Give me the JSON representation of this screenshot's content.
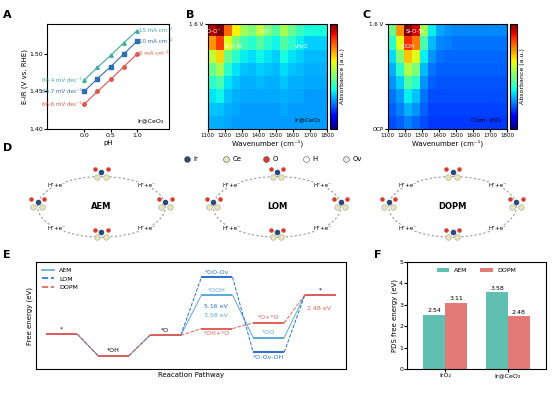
{
  "chart_data": [
    {
      "panel": "A",
      "type": "line",
      "xlabel": "pH",
      "ylabel": "E-iR (V vs. RHE)",
      "x": [
        0,
        0.25,
        0.5,
        0.75,
        1.0
      ],
      "xlim": [
        -0.7,
        1.6
      ],
      "ylim": [
        1.4,
        1.54
      ],
      "xticks": [
        {
          "value": 0,
          "label": "0.0"
        },
        {
          "value": 0.5,
          "label": "0.5"
        },
        {
          "value": 1.0,
          "label": "1.0"
        }
      ],
      "yticks": [
        {
          "value": 1.4,
          "label": "1.40"
        },
        {
          "value": 1.45,
          "label": "1.45"
        },
        {
          "value": 1.5,
          "label": "1.50"
        }
      ],
      "annotation": "Ir@CeO₂",
      "series": [
        {
          "name": "15 mA cm⁻²",
          "slope_label": "66.4 mV dec⁻¹",
          "color": "#3fae9d",
          "marker": "triangle",
          "values": [
            1.465,
            1.482,
            1.498,
            1.515,
            1.531
          ]
        },
        {
          "name": "10 mA cm⁻²",
          "slope_label": "66.7 mV dec⁻¹",
          "color": "#2f6fb0",
          "marker": "square",
          "values": [
            1.45,
            1.467,
            1.483,
            1.5,
            1.517
          ]
        },
        {
          "name": "5 mA cm⁻²",
          "slope_label": "66.6 mV dec⁻¹",
          "color": "#e0554d",
          "marker": "circle",
          "values": [
            1.433,
            1.45,
            1.466,
            1.483,
            1.5
          ]
        }
      ]
    },
    {
      "panel": "B",
      "type": "heatmap",
      "xlabel": "Wavenumber (cm⁻¹)",
      "xlim": [
        1100,
        1800
      ],
      "ylim": [
        0,
        1
      ],
      "xticks": [
        1100,
        1200,
        1300,
        1400,
        1500,
        1600,
        1700,
        1800
      ],
      "yticks": [
        {
          "value": 1,
          "label": "1.6 V"
        }
      ],
      "sample": "Ir@CeO₂",
      "annotations": [
        {
          "text": "*O-O⁻",
          "x": 1130
        },
        {
          "text": "Si-O-Si",
          "x": 1250
        },
        {
          "text": "O-O⁻",
          "x": 1440
        },
        {
          "text": "νH₂O",
          "x": 1650
        }
      ],
      "colorbar": {
        "label": "Absorbance (a.u.)",
        "range": [
          0,
          1
        ]
      },
      "cells": [
        [
          0.3,
          0.3,
          0.29,
          0.28,
          0.28,
          0.28,
          0.28,
          0.28,
          0.28,
          0.28,
          0.28,
          0.28,
          0.28,
          0.28,
          0.28
        ],
        [
          0.32,
          0.32,
          0.3,
          0.29,
          0.28,
          0.28,
          0.28,
          0.28,
          0.28,
          0.29,
          0.28,
          0.28,
          0.28,
          0.28,
          0.28
        ],
        [
          0.35,
          0.37,
          0.32,
          0.3,
          0.29,
          0.29,
          0.29,
          0.29,
          0.29,
          0.3,
          0.29,
          0.29,
          0.28,
          0.28,
          0.28
        ],
        [
          0.4,
          0.44,
          0.35,
          0.32,
          0.3,
          0.3,
          0.31,
          0.3,
          0.3,
          0.32,
          0.3,
          0.3,
          0.29,
          0.29,
          0.29
        ],
        [
          0.48,
          0.55,
          0.4,
          0.35,
          0.32,
          0.31,
          0.33,
          0.32,
          0.31,
          0.34,
          0.32,
          0.31,
          0.3,
          0.3,
          0.3
        ],
        [
          0.58,
          0.68,
          0.48,
          0.4,
          0.36,
          0.34,
          0.37,
          0.35,
          0.33,
          0.38,
          0.35,
          0.33,
          0.31,
          0.31,
          0.31
        ],
        [
          0.75,
          0.85,
          0.62,
          0.5,
          0.43,
          0.4,
          0.45,
          0.4,
          0.37,
          0.45,
          0.4,
          0.36,
          0.33,
          0.33,
          0.33
        ],
        [
          0.95,
          1.0,
          0.8,
          0.65,
          0.55,
          0.5,
          0.58,
          0.5,
          0.45,
          0.55,
          0.48,
          0.42,
          0.38,
          0.38,
          0.38
        ]
      ]
    },
    {
      "panel": "C",
      "type": "heatmap",
      "xlabel": "Wavenumber (cm⁻¹)",
      "xlim": [
        1100,
        1800
      ],
      "ylim": [
        0,
        1
      ],
      "xticks": [
        1100,
        1200,
        1300,
        1400,
        1500,
        1600,
        1700,
        1800
      ],
      "yticks": [
        {
          "value": 0,
          "label": "OCP"
        },
        {
          "value": 1,
          "label": "1.6 V"
        }
      ],
      "sample": "Com. IrO₂",
      "annotations": [
        {
          "text": "Si-O-Si",
          "x": 1260
        },
        {
          "text": "*OOH",
          "x": 1215
        }
      ],
      "colorbar": {
        "label": "Absorbance (a.u.)",
        "range": [
          0,
          1
        ]
      },
      "cells": [
        [
          0.2,
          0.22,
          0.25,
          0.23,
          0.2,
          0.18,
          0.18,
          0.18,
          0.18,
          0.18,
          0.18,
          0.18,
          0.18,
          0.18,
          0.18
        ],
        [
          0.22,
          0.25,
          0.3,
          0.27,
          0.22,
          0.19,
          0.19,
          0.19,
          0.19,
          0.19,
          0.19,
          0.19,
          0.19,
          0.19,
          0.19
        ],
        [
          0.24,
          0.28,
          0.36,
          0.32,
          0.24,
          0.2,
          0.2,
          0.2,
          0.2,
          0.2,
          0.2,
          0.2,
          0.2,
          0.2,
          0.2
        ],
        [
          0.27,
          0.33,
          0.45,
          0.4,
          0.27,
          0.22,
          0.21,
          0.21,
          0.21,
          0.21,
          0.21,
          0.21,
          0.21,
          0.21,
          0.21
        ],
        [
          0.3,
          0.4,
          0.56,
          0.5,
          0.31,
          0.24,
          0.22,
          0.22,
          0.22,
          0.22,
          0.22,
          0.22,
          0.22,
          0.22,
          0.22
        ],
        [
          0.34,
          0.5,
          0.7,
          0.62,
          0.36,
          0.27,
          0.24,
          0.23,
          0.23,
          0.23,
          0.23,
          0.23,
          0.23,
          0.23,
          0.23
        ],
        [
          0.4,
          0.62,
          0.86,
          0.78,
          0.44,
          0.31,
          0.26,
          0.25,
          0.24,
          0.24,
          0.24,
          0.24,
          0.24,
          0.24,
          0.24
        ],
        [
          0.48,
          0.75,
          1.0,
          0.92,
          0.55,
          0.36,
          0.29,
          0.27,
          0.26,
          0.26,
          0.26,
          0.26,
          0.26,
          0.26,
          0.26
        ]
      ]
    },
    {
      "panel": "D",
      "type": "diagram",
      "cycles": [
        "AEM",
        "LOM",
        "DOPM"
      ],
      "step_label": "H⁺+e⁻",
      "legend": [
        {
          "name": "Ir",
          "color": "#2e4a78"
        },
        {
          "name": "Ce",
          "color": "#e9e5b5"
        },
        {
          "name": "O",
          "color": "#d93a2b"
        },
        {
          "name": "H",
          "color": "#ffffff"
        },
        {
          "name": "Ov",
          "color": "#f1e6e6"
        }
      ]
    },
    {
      "panel": "E",
      "type": "line",
      "xlabel": "Reacation Pathway",
      "ylabel": "Free energy (eV)",
      "x": [
        0,
        1,
        2,
        3,
        4,
        5
      ],
      "xlim": [
        -0.5,
        5.5
      ],
      "ylim": [
        -3,
        6.5
      ],
      "tick_labels": false,
      "legend": "upper left",
      "series": [
        {
          "name": "AEM",
          "color": "#5aa9d6",
          "line_style": "solid",
          "values": [
            0.1,
            -1.8,
            0,
            3.58,
            -0.2,
            3.6
          ],
          "states": [
            "*",
            "*OH",
            "*O",
            "*OOH",
            "*OO",
            "*"
          ],
          "step_labels": [
            {
              "from": 2,
              "to": 3,
              "text": "3.58 eV"
            }
          ]
        },
        {
          "name": "LOM",
          "color": "#2a6fd0",
          "line_style": "dashed",
          "values": [
            0.1,
            -1.8,
            0,
            5.16,
            -1.5,
            3.6
          ],
          "states": [
            "*",
            "*OH",
            "*O",
            "*OO-Ov",
            "*O-Ov-OH",
            "*"
          ],
          "step_labels": [
            {
              "from": 2,
              "to": 3,
              "text": "5.16 eV"
            }
          ]
        },
        {
          "name": "DOPM",
          "color": "#e0605a",
          "line_style": "dashed",
          "values": [
            0.1,
            -1.8,
            0,
            0.6,
            1.12,
            3.6
          ],
          "states": [
            "*",
            "*OH",
            "*O",
            "*OH+*O",
            "*O+*O",
            "*"
          ],
          "step_labels": [
            {
              "from": 4,
              "to": 5,
              "text": "2.48 eV"
            }
          ]
        }
      ]
    },
    {
      "panel": "F",
      "type": "bar",
      "ylabel": "PDS free energy (eV)",
      "categories": [
        "IrO₂",
        "Ir@CeO₂"
      ],
      "ylim": [
        0,
        5
      ],
      "yticks": [
        0,
        1,
        2,
        3,
        4,
        5
      ],
      "data_labels": true,
      "legend": "upper center",
      "series": [
        {
          "name": "AEM",
          "color": "#5fbfb0",
          "values": [
            2.54,
            3.58
          ]
        },
        {
          "name": "DOPM",
          "color": "#e47a76",
          "values": [
            3.11,
            2.48
          ]
        }
      ]
    }
  ]
}
